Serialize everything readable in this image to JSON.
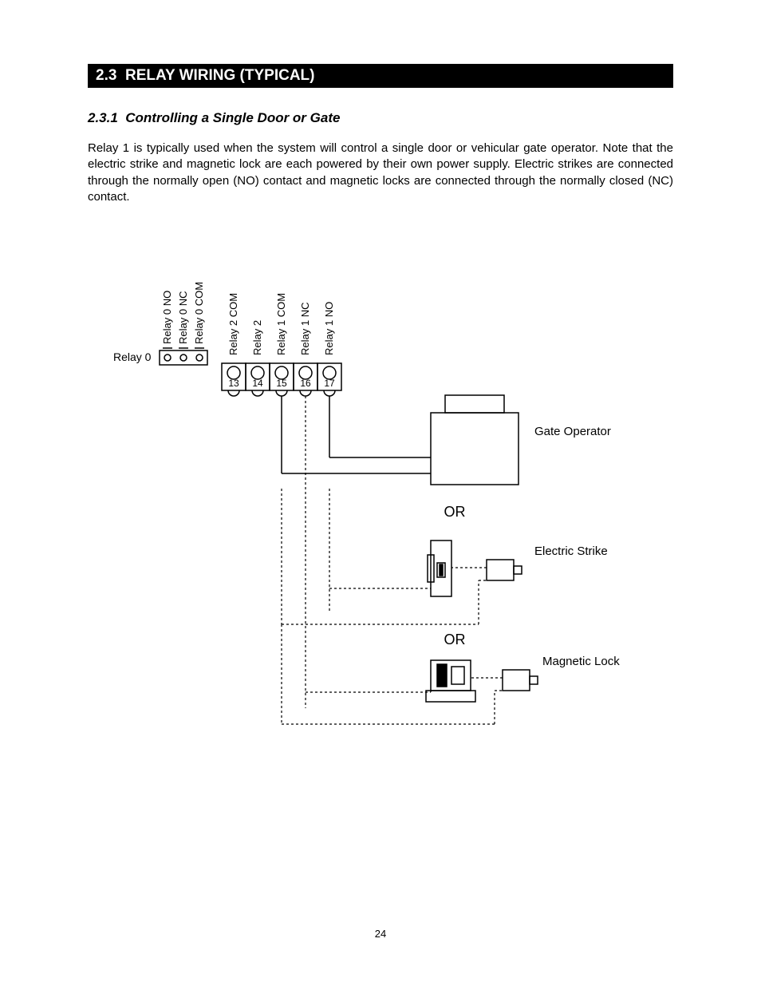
{
  "section": {
    "number": "2.3",
    "title": "RELAY WIRING (TYPICAL)"
  },
  "subsection": {
    "number": "2.3.1",
    "title": "Controlling a Single Door or Gate"
  },
  "paragraph": "Relay 1 is typically used when the system will control a single door or vehicular gate operator.  Note that the electric strike and magnetic lock are each powered by their own power supply.  Electric strikes are connected through the normally open (NO) contact and magnetic locks are connected through the normally closed (NC) contact.",
  "page_number": "24",
  "diagram": {
    "relay0_label": "Relay 0",
    "relay0_terms": [
      "Relay 0 NO",
      "Relay 0 NC",
      "Relay 0 COM"
    ],
    "terminals": [
      {
        "num": "13",
        "label": "Relay 2 COM"
      },
      {
        "num": "14",
        "label": "Relay 2"
      },
      {
        "num": "15",
        "label": "Relay 1 COM"
      },
      {
        "num": "16",
        "label": "Relay 1 NC"
      },
      {
        "num": "17",
        "label": "Relay 1 NO"
      }
    ],
    "devices": {
      "gate": "Gate Operator",
      "strike": "Electric Strike",
      "maglock": "Magnetic Lock"
    },
    "or_label": "OR",
    "colors": {
      "stroke": "#000000",
      "bg": "#ffffff",
      "fill_black": "#000000"
    },
    "font_sizes": {
      "term_label": 13,
      "term_num": 12,
      "device_label": 15,
      "or_label": 18,
      "relay0_label": 14
    },
    "line_widths": {
      "solid": 1.5,
      "dashed": 1.2
    },
    "dash_pattern": "3,3"
  }
}
